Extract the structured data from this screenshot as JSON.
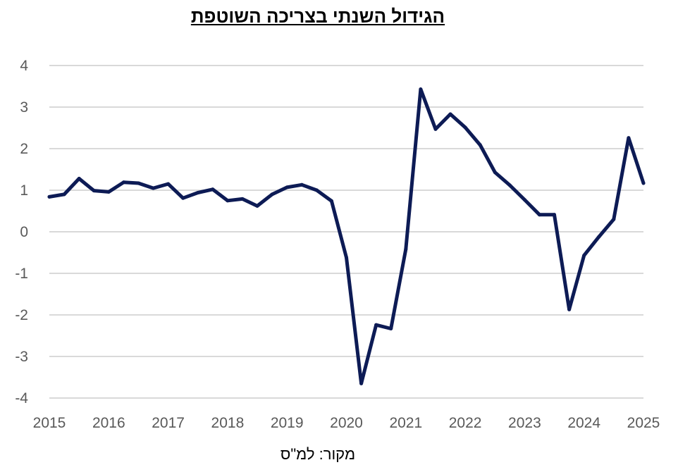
{
  "chart_data": {
    "type": "line",
    "title": "הגידול השנתי בצריכה השוטפת",
    "source": "מקור: למ\"ס",
    "xlabel": "",
    "ylabel": "",
    "ylim": [
      -4,
      4
    ],
    "yticks": [
      "4",
      "3",
      "2",
      "1",
      "0",
      "-1",
      "-2",
      "-3",
      "-4"
    ],
    "xlim": [
      2015,
      2025
    ],
    "xticks": [
      "2015",
      "2016",
      "2017",
      "2018",
      "2019",
      "2020",
      "2021",
      "2022",
      "2023",
      "2024",
      "2025"
    ],
    "grid": true,
    "legend": "none",
    "line_color": "#0d1b55",
    "grid_color": "#d9d9d9",
    "series": [
      {
        "x": [
          2015.0,
          2015.25,
          2015.5,
          2015.75,
          2016.0,
          2016.25,
          2016.5,
          2016.75,
          2017.0,
          2017.25,
          2017.5,
          2017.75,
          2018.0,
          2018.25,
          2018.5,
          2018.75,
          2019.0,
          2019.25,
          2019.5,
          2019.75,
          2020.0,
          2020.25,
          2020.5,
          2020.75,
          2021.0,
          2021.25,
          2021.5,
          2021.75,
          2022.0,
          2022.25,
          2022.5,
          2022.75,
          2023.0,
          2023.25,
          2023.5,
          2023.75,
          2024.0,
          2024.25,
          2024.5,
          2024.75,
          2025.0
        ],
        "values": [
          0.84,
          0.9,
          1.28,
          0.99,
          0.96,
          1.19,
          1.17,
          1.05,
          1.15,
          0.81,
          0.94,
          1.02,
          0.75,
          0.79,
          0.62,
          0.9,
          1.07,
          1.13,
          1.0,
          0.74,
          -0.62,
          -3.65,
          -2.24,
          -2.33,
          -0.42,
          3.43,
          2.47,
          2.83,
          2.51,
          2.09,
          1.43,
          1.12,
          0.77,
          0.41,
          0.41,
          -1.87,
          -0.57,
          -0.12,
          0.3,
          2.26,
          1.17
        ]
      }
    ]
  }
}
